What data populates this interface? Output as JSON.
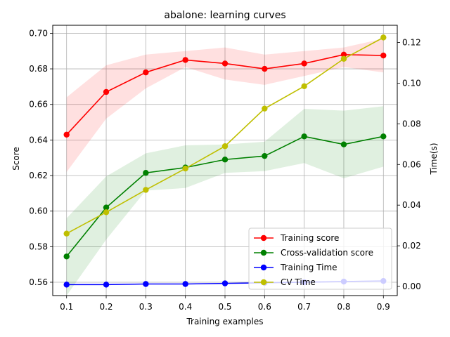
{
  "chart_data": {
    "type": "line",
    "title": "abalone: learning curves",
    "xlabel": "Training examples",
    "ylabel": "Score",
    "y2label": "Time(s)",
    "x": [
      0.1,
      0.2,
      0.3,
      0.4,
      0.5,
      0.6,
      0.7,
      0.8,
      0.9
    ],
    "x_ticks": [
      "0.1",
      "0.2",
      "0.3",
      "0.4",
      "0.5",
      "0.6",
      "0.7",
      "0.8",
      "0.9"
    ],
    "ylim": [
      0.5525,
      0.7045
    ],
    "y_ticks": [
      "0.56",
      "0.58",
      "0.60",
      "0.62",
      "0.64",
      "0.66",
      "0.68",
      "0.70"
    ],
    "y_tick_values": [
      0.56,
      0.58,
      0.6,
      0.62,
      0.64,
      0.66,
      0.68,
      0.7
    ],
    "y2lim": [
      -0.0045,
      0.1285
    ],
    "y2_ticks": [
      "0.00",
      "0.02",
      "0.04",
      "0.06",
      "0.08",
      "0.10",
      "0.12"
    ],
    "y2_tick_values": [
      0.0,
      0.02,
      0.04,
      0.06,
      0.08,
      0.1,
      0.12
    ],
    "grid": true,
    "legend_position": "lower-right",
    "series": [
      {
        "name": "Training score",
        "axis": "left",
        "color": "#ff0000",
        "values": [
          0.643,
          0.667,
          0.678,
          0.685,
          0.683,
          0.68,
          0.683,
          0.688,
          0.6875
        ],
        "band_lower": [
          0.622,
          0.652,
          0.669,
          0.681,
          0.674,
          0.671,
          0.676,
          0.681,
          0.678
        ],
        "band_upper": [
          0.664,
          0.682,
          0.688,
          0.69,
          0.692,
          0.688,
          0.69,
          0.692,
          0.697
        ],
        "band_color": "#ff0000"
      },
      {
        "name": "Cross-validation score",
        "axis": "left",
        "color": "#008000",
        "values": [
          0.5745,
          0.602,
          0.6215,
          0.6245,
          0.629,
          0.631,
          0.642,
          0.6375,
          0.642
        ],
        "band_lower": [
          0.5525,
          0.584,
          0.6115,
          0.613,
          0.6215,
          0.6225,
          0.627,
          0.6185,
          0.625
        ],
        "band_upper": [
          0.596,
          0.6195,
          0.6325,
          0.637,
          0.6375,
          0.639,
          0.6575,
          0.6565,
          0.659
        ],
        "band_color": "#008000"
      },
      {
        "name": "Training Time",
        "axis": "right",
        "color": "#0000ff",
        "values": [
          0.0009,
          0.0009,
          0.0012,
          0.0012,
          0.0015,
          0.0018,
          0.0021,
          0.0024,
          0.0027
        ]
      },
      {
        "name": "CV Time",
        "axis": "right",
        "color": "#bfbf00",
        "values": [
          0.026,
          0.0365,
          0.0475,
          0.058,
          0.069,
          0.0875,
          0.0985,
          0.112,
          0.1225
        ]
      }
    ]
  }
}
